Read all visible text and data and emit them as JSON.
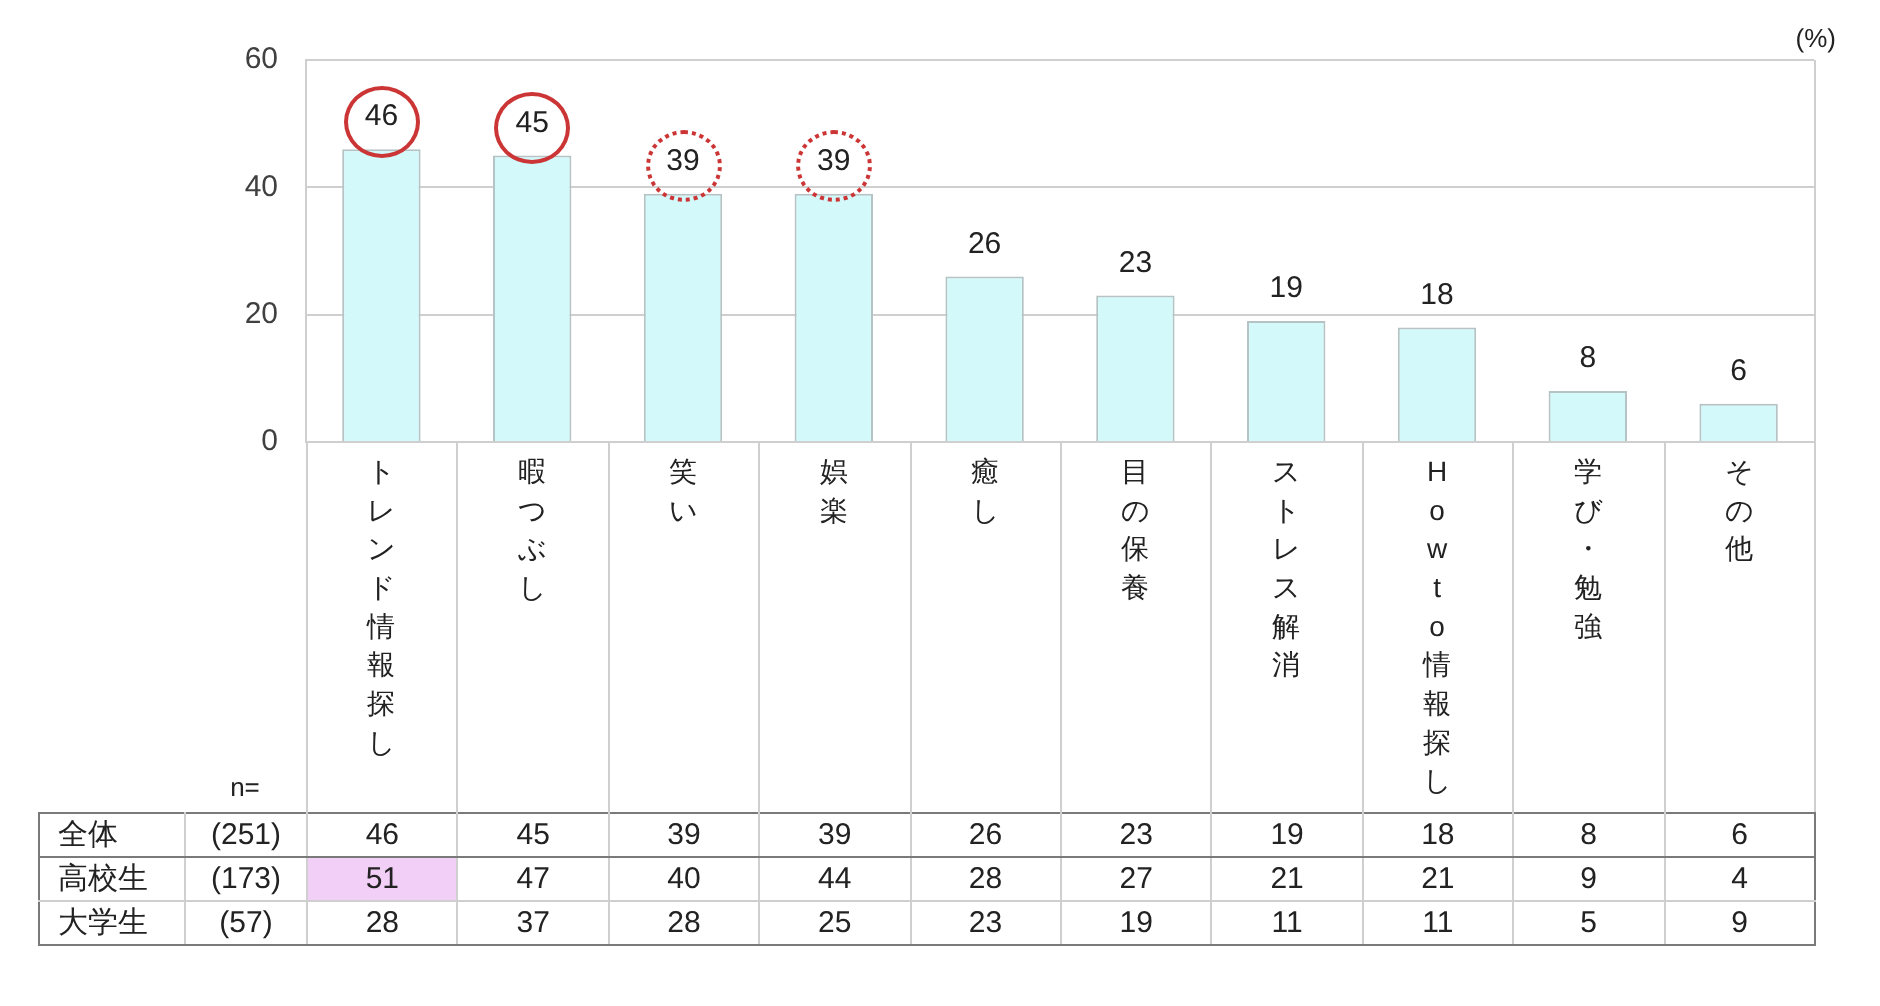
{
  "chart_data": [
    {
      "type": "bar",
      "ylabel": "(%)",
      "categories": [
        "トレンド情報探し",
        "暇つぶし",
        "笑い",
        "娯楽",
        "癒し",
        "目の保養",
        "ストレス解消",
        "Howto情報探し",
        "学び・勉強",
        "その他"
      ],
      "values": [
        46,
        45,
        39,
        39,
        26,
        23,
        19,
        18,
        8,
        6
      ],
      "value_labels": [
        "46",
        "45",
        "39",
        "39",
        "26",
        "23",
        "19",
        "18",
        "8",
        "6"
      ],
      "color": "#d3f9fb",
      "ylim": [
        0,
        60
      ],
      "yticks": [
        0,
        20,
        40,
        60
      ],
      "grid": "y"
    },
    {
      "type": "heatmap",
      "categories": [
        "トレンド情報探し",
        "暇つぶし",
        "笑い",
        "娯楽",
        "癒し",
        "目の保養",
        "ストレス解消",
        "Howto情報探し",
        "学び・勉強",
        "その他"
      ],
      "tick_labels": "y",
      "y_categories": [
        "全体",
        "高校生",
        "大学生"
      ],
      "y2_categories": [
        "(251)",
        "(173)",
        "(57)"
      ],
      "cells": [
        [
          46,
          45,
          39,
          39,
          26,
          23,
          19,
          18,
          8,
          6
        ],
        [
          51,
          47,
          40,
          44,
          28,
          27,
          21,
          21,
          9,
          4
        ],
        [
          28,
          37,
          28,
          25,
          23,
          19,
          11,
          11,
          5,
          9
        ]
      ],
      "data_labels": true,
      "annotations": [
        "n="
      ]
    }
  ]
}
